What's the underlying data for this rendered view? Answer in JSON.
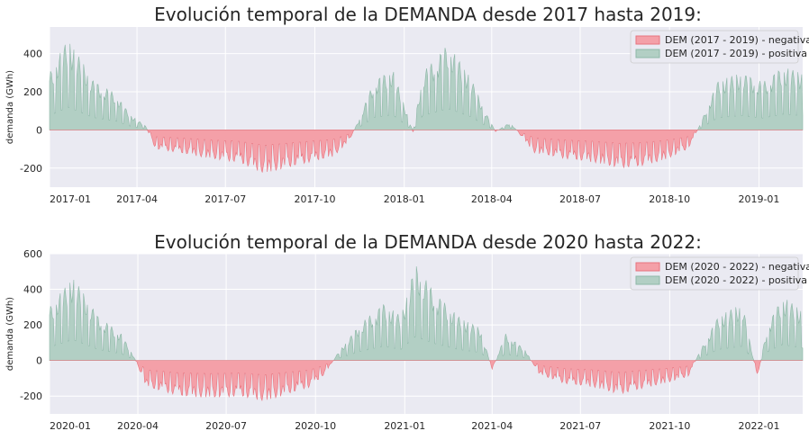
{
  "colors": {
    "background": "#eaeaf2",
    "grid": "#ffffff",
    "negative_fill": "#f4a0a8",
    "negative_edge": "#e8737e",
    "positive_fill": "#b2cfc4",
    "positive_edge": "#8fb8a8"
  },
  "chart_data": [
    {
      "type": "area",
      "title": "Evolución temporal de la DEMANDA desde 2017 hasta 2019:",
      "xlabel": "",
      "ylabel": "demanda (GWh)",
      "grid": true,
      "legend_position": "top-right",
      "x_range": [
        "2017-01-01",
        "2019-02-15"
      ],
      "ylim": [
        -300,
        540
      ],
      "yticks": [
        -200,
        0,
        200,
        400
      ],
      "xticks": [
        "2017-01",
        "2017-04",
        "2017-07",
        "2017-10",
        "2018-01",
        "2018-04",
        "2018-07",
        "2018-10",
        "2019-01"
      ],
      "series": [
        {
          "name": "DEM (2017 - 2019) - negativa",
          "role": "negative"
        },
        {
          "name": "DEM (2017 - 2019) - positiva",
          "role": "positive"
        }
      ],
      "envelope": [
        [
          "2017-01-01",
          300
        ],
        [
          "2017-01-20",
          480
        ],
        [
          "2017-02-15",
          260
        ],
        [
          "2017-03-10",
          190
        ],
        [
          "2017-03-25",
          80
        ],
        [
          "2017-04-10",
          20
        ],
        [
          "2017-04-20",
          -100
        ],
        [
          "2017-05-15",
          -120
        ],
        [
          "2017-06-15",
          -150
        ],
        [
          "2017-07-15",
          -170
        ],
        [
          "2017-08-10",
          -230
        ],
        [
          "2017-09-01",
          -200
        ],
        [
          "2017-09-25",
          -170
        ],
        [
          "2017-10-20",
          -140
        ],
        [
          "2017-11-05",
          -60
        ],
        [
          "2017-11-15",
          50
        ],
        [
          "2017-12-01",
          260
        ],
        [
          "2017-12-20",
          320
        ],
        [
          "2018-01-10",
          -10
        ],
        [
          "2018-01-20",
          300
        ],
        [
          "2018-02-15",
          450
        ],
        [
          "2018-03-10",
          280
        ],
        [
          "2018-03-25",
          100
        ],
        [
          "2018-04-05",
          -10
        ],
        [
          "2018-04-20",
          40
        ],
        [
          "2018-05-15",
          -120
        ],
        [
          "2018-06-15",
          -150
        ],
        [
          "2018-07-15",
          -170
        ],
        [
          "2018-08-10",
          -200
        ],
        [
          "2018-09-01",
          -190
        ],
        [
          "2018-09-25",
          -160
        ],
        [
          "2018-10-20",
          -100
        ],
        [
          "2018-10-30",
          0
        ],
        [
          "2018-11-20",
          260
        ],
        [
          "2018-12-15",
          300
        ],
        [
          "2019-01-05",
          250
        ],
        [
          "2019-01-25",
          330
        ],
        [
          "2019-02-15",
          300
        ]
      ]
    },
    {
      "type": "area",
      "title": "Evolución temporal de la DEMANDA desde 2020 hasta 2022:",
      "xlabel": "",
      "ylabel": "demanda (GWh)",
      "grid": true,
      "legend_position": "top-right",
      "x_range": [
        "2020-01-01",
        "2022-02-15"
      ],
      "ylim": [
        -300,
        600
      ],
      "yticks": [
        -200,
        0,
        200,
        400,
        600
      ],
      "xticks": [
        "2020-01",
        "2020-04",
        "2020-07",
        "2020-10",
        "2021-01",
        "2021-04",
        "2021-07",
        "2021-10",
        "2022-01"
      ],
      "series": [
        {
          "name": "DEM (2020 - 2022) - negativa",
          "role": "negative"
        },
        {
          "name": "DEM (2020 - 2022) - positiva",
          "role": "positive"
        }
      ],
      "envelope": [
        [
          "2020-01-01",
          300
        ],
        [
          "2020-01-25",
          470
        ],
        [
          "2020-02-20",
          250
        ],
        [
          "2020-03-15",
          150
        ],
        [
          "2020-03-28",
          20
        ],
        [
          "2020-04-10",
          -150
        ],
        [
          "2020-05-15",
          -200
        ],
        [
          "2020-06-15",
          -210
        ],
        [
          "2020-07-15",
          -200
        ],
        [
          "2020-08-10",
          -230
        ],
        [
          "2020-09-01",
          -190
        ],
        [
          "2020-09-25",
          -150
        ],
        [
          "2020-10-10",
          -80
        ],
        [
          "2020-10-25",
          50
        ],
        [
          "2020-11-15",
          200
        ],
        [
          "2020-12-10",
          320
        ],
        [
          "2020-12-28",
          250
        ],
        [
          "2021-01-12",
          540
        ],
        [
          "2021-02-01",
          380
        ],
        [
          "2021-02-25",
          250
        ],
        [
          "2021-03-20",
          180
        ],
        [
          "2021-04-01",
          -50
        ],
        [
          "2021-04-15",
          150
        ],
        [
          "2021-05-05",
          60
        ],
        [
          "2021-05-20",
          -80
        ],
        [
          "2021-06-15",
          -130
        ],
        [
          "2021-07-15",
          -150
        ],
        [
          "2021-08-10",
          -190
        ],
        [
          "2021-09-01",
          -160
        ],
        [
          "2021-09-25",
          -130
        ],
        [
          "2021-10-20",
          -90
        ],
        [
          "2021-11-01",
          50
        ],
        [
          "2021-11-20",
          250
        ],
        [
          "2021-12-15",
          320
        ],
        [
          "2021-12-30",
          -100
        ],
        [
          "2022-01-10",
          200
        ],
        [
          "2022-01-25",
          360
        ],
        [
          "2022-02-15",
          280
        ]
      ]
    }
  ]
}
